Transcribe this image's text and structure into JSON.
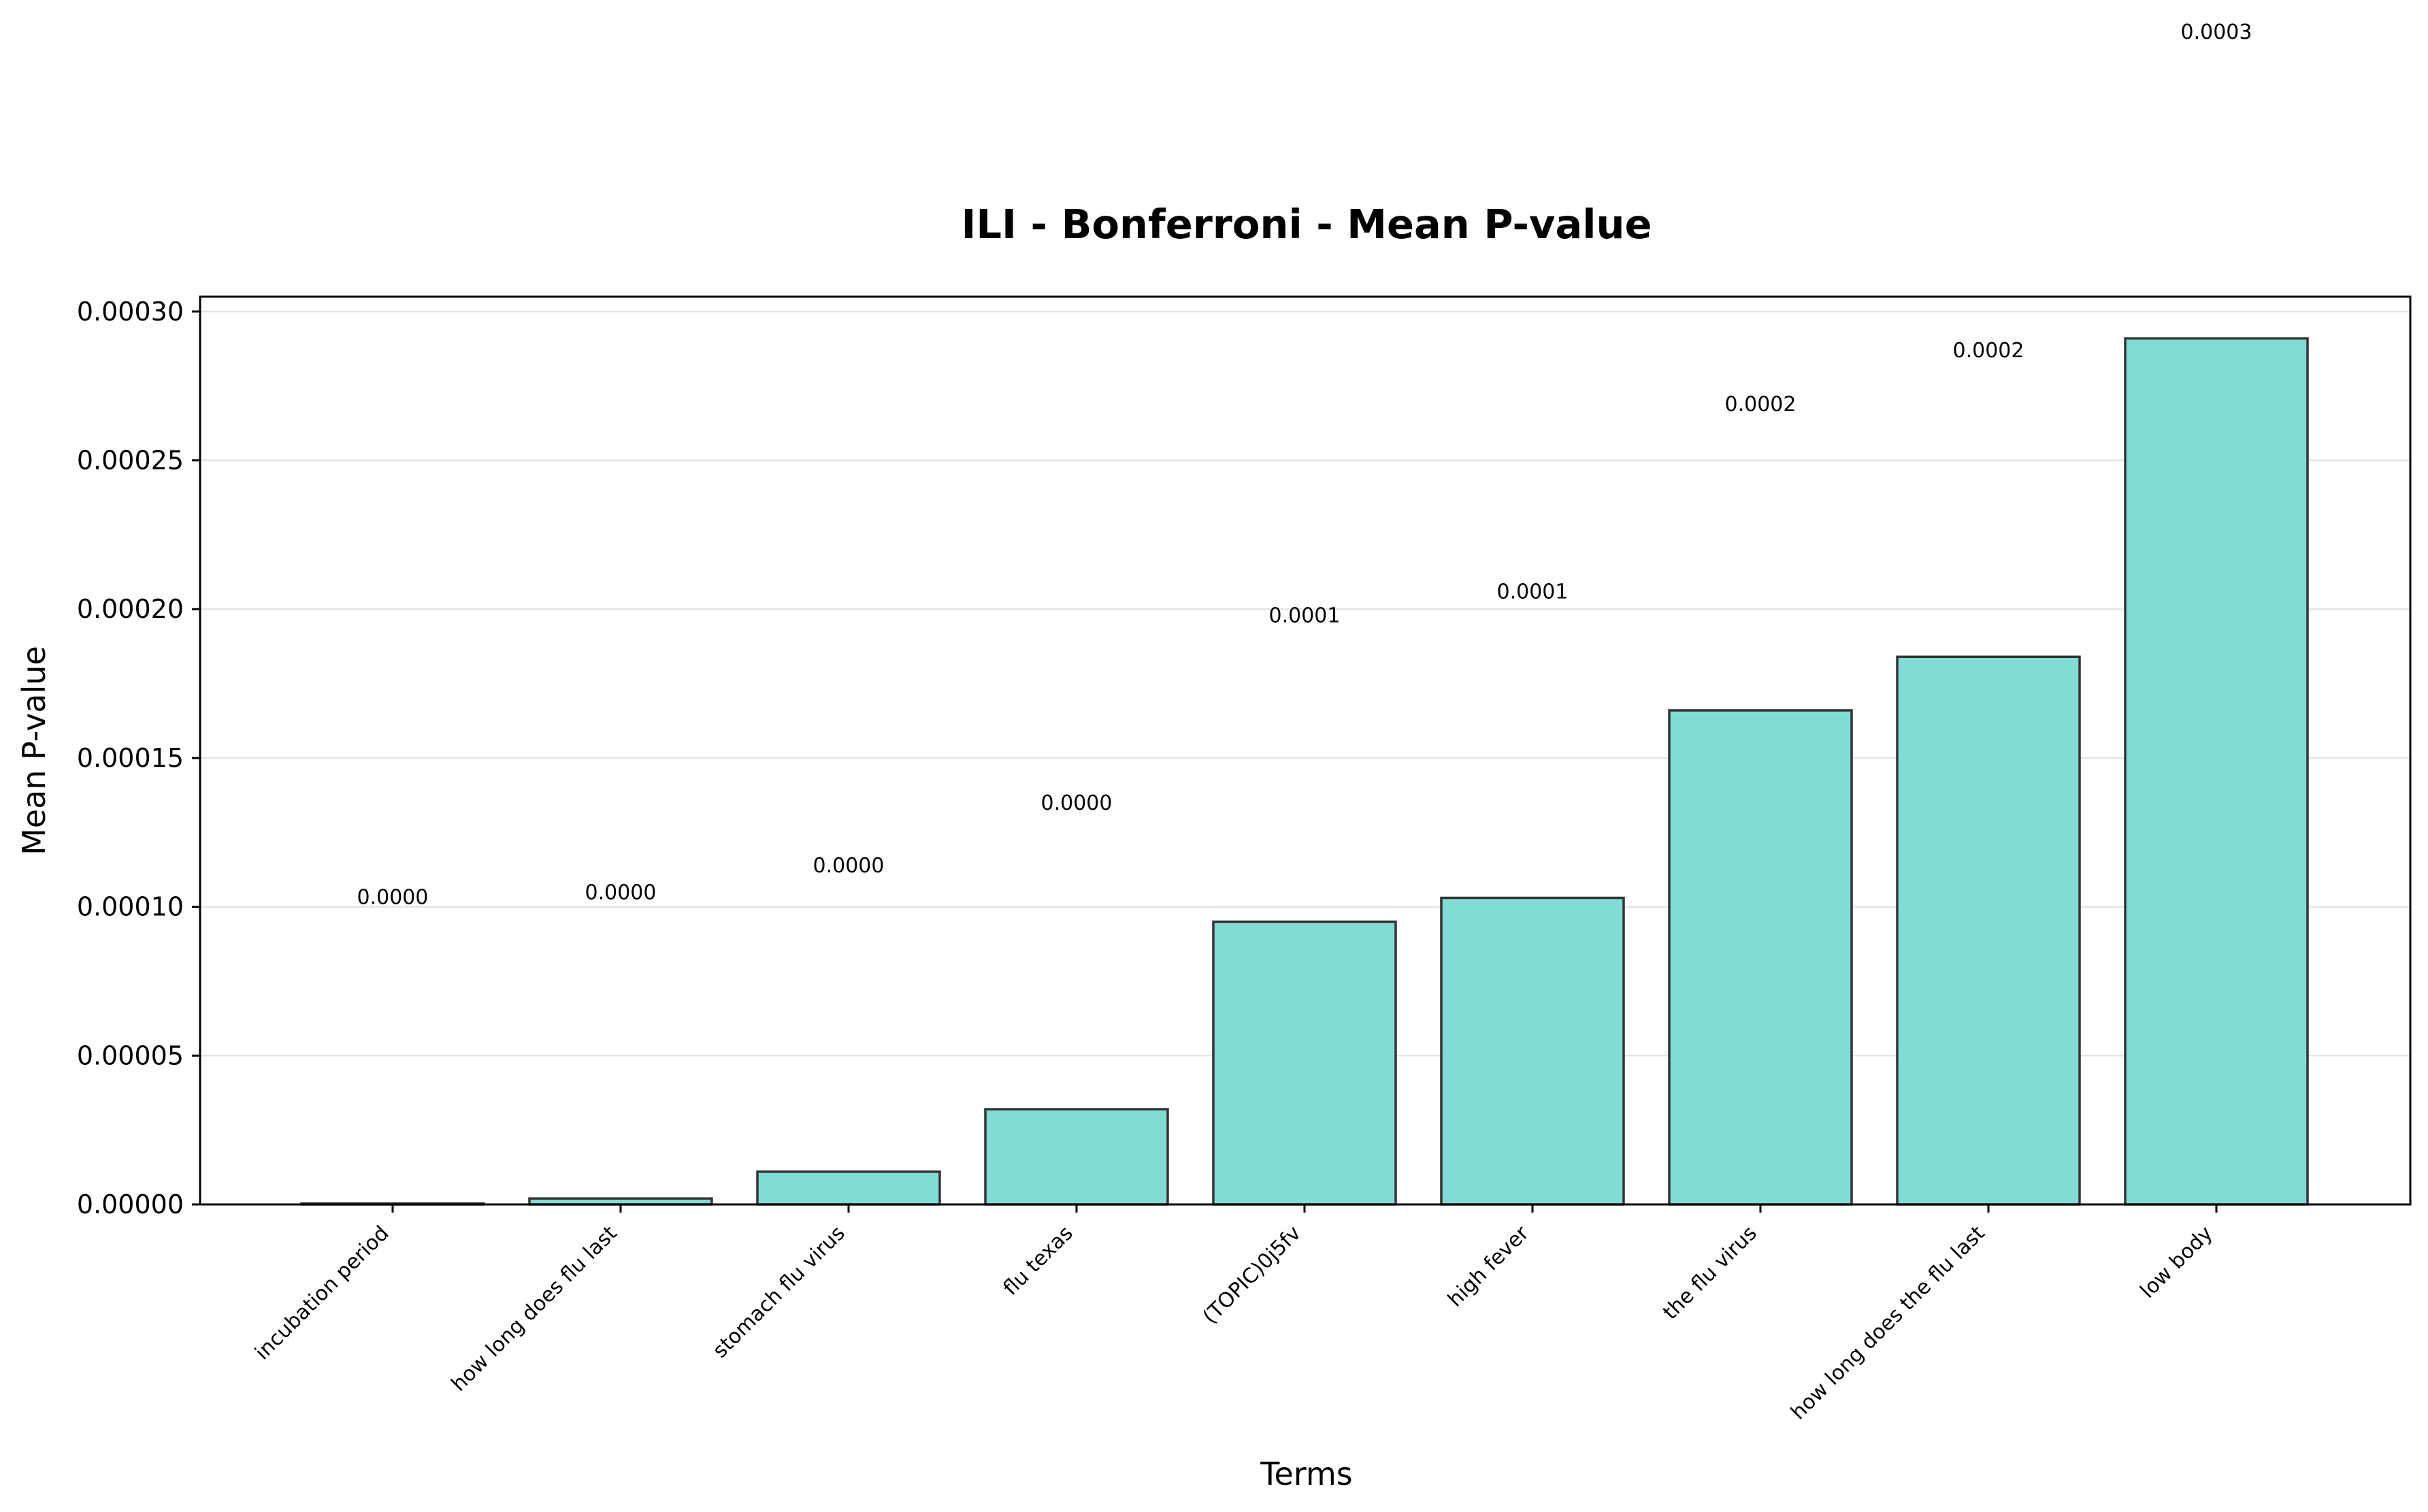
{
  "chart_data": {
    "type": "bar",
    "title": "ILI - Bonferroni - Mean P-value",
    "xlabel": "Terms",
    "ylabel": "Mean P-value",
    "categories": [
      "incubation period",
      "how long does flu last",
      "stomach flu virus",
      "flu texas",
      "(TOPIC)0j5fv",
      "high fever",
      "the flu virus",
      "how long does the flu last",
      "low body"
    ],
    "values": [
      3e-07,
      2e-06,
      1.1e-05,
      3.2e-05,
      9.5e-05,
      0.000103,
      0.000166,
      0.000184,
      0.000291
    ],
    "data_labels": [
      "0.0000",
      "0.0000",
      "0.0000",
      "0.0000",
      "0.0001",
      "0.0001",
      "0.0002",
      "0.0002",
      "0.0003"
    ],
    "ylim": [
      0,
      0.000305
    ],
    "yticks": [
      0,
      5e-05,
      0.0001,
      0.00015,
      0.0002,
      0.00025,
      0.0003
    ],
    "ytick_labels": [
      "0.00000",
      "0.00005",
      "0.00010",
      "0.00015",
      "0.00020",
      "0.00025",
      "0.00030"
    ],
    "grid": true,
    "bar_color": "#82dbd4",
    "bar_edge_color": "#333333"
  }
}
